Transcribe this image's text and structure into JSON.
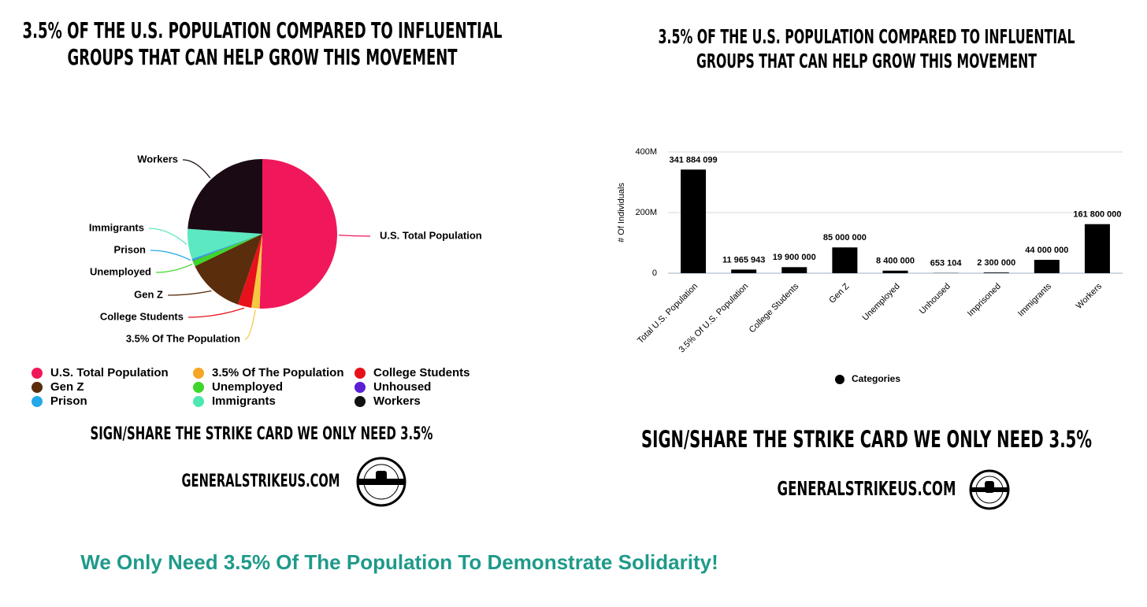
{
  "chart_data": [
    {
      "type": "pie",
      "title": [
        "3.5% OF THE U.S. POPULATION COMPARED TO INFLUENTIAL",
        "GROUPS THAT CAN HELP GROW THIS MOVEMENT"
      ],
      "categories": [
        "U.S. Total Population",
        "3.5% Of The Population",
        "College Students",
        "Gen Z",
        "Unemployed",
        "Unhoused",
        "Prison",
        "Immigrants",
        "Workers"
      ],
      "slice_labels": [
        "U.S. Total Population",
        "3.5% Of The Population",
        "College Students",
        "Gen Z",
        "Unemployed",
        null,
        "Prison",
        "Immigrants",
        "Workers"
      ],
      "values": [
        341884099,
        11965943,
        19900000,
        85000000,
        8400000,
        653104,
        2300000,
        44000000,
        161800000
      ],
      "colors": [
        "#f0185a",
        "#f5c842",
        "#e8101a",
        "#5a2d0c",
        "#3dd62a",
        "#5a1fd6",
        "#25a8e8",
        "#5ce8c0",
        "#1a0a14"
      ],
      "legend_colors": [
        "#f0185a",
        "#f5a623",
        "#e8101a",
        "#5a2d0c",
        "#3dd62a",
        "#5a1fd6",
        "#25a8e8",
        "#4de8b0",
        "#111111"
      ]
    },
    {
      "type": "bar",
      "title": [
        "3.5% OF THE U.S. POPULATION COMPARED TO INFLUENTIAL",
        "GROUPS THAT CAN HELP GROW THIS MOVEMENT"
      ],
      "categories": [
        "Total U.S. Population",
        "3.5% Of U.S. Population",
        "College Students",
        "Gen Z",
        "Unemployed",
        "Unhoused",
        "Imprisoned",
        "Immigrants",
        "Workers"
      ],
      "series": [
        {
          "name": "Categories",
          "color": "#000000",
          "values": [
            341884099,
            11965943,
            19900000,
            85000000,
            8400000,
            653104,
            2300000,
            44000000,
            161800000
          ],
          "value_labels": [
            "341 884 099",
            "11 965 943",
            "19 900 000",
            "85 000 000",
            "8 400 000",
            "653 104",
            "2 300 000",
            "44 000 000",
            "161 800 000"
          ]
        }
      ],
      "y_label": "# Of Individuals",
      "ylim": [
        0,
        400000000
      ],
      "yticks": [
        0,
        {
          "value": 200000000,
          "label": "200M"
        },
        {
          "value": 400000000,
          "label": "400M"
        }
      ],
      "grid": true
    }
  ],
  "cta": [
    "SIGN/SHARE THE STRIKE CARD WE ONLY NEED 3.5%",
    "SIGN/SHARE THE STRIKE CARD WE ONLY NEED 3.5%"
  ],
  "website": [
    "GENERALSTRIKEUS.COM",
    "GENERALSTRIKEUS.COM"
  ],
  "caption": "We Only Need 3.5% Of The Population To Demonstrate Solidarity!"
}
